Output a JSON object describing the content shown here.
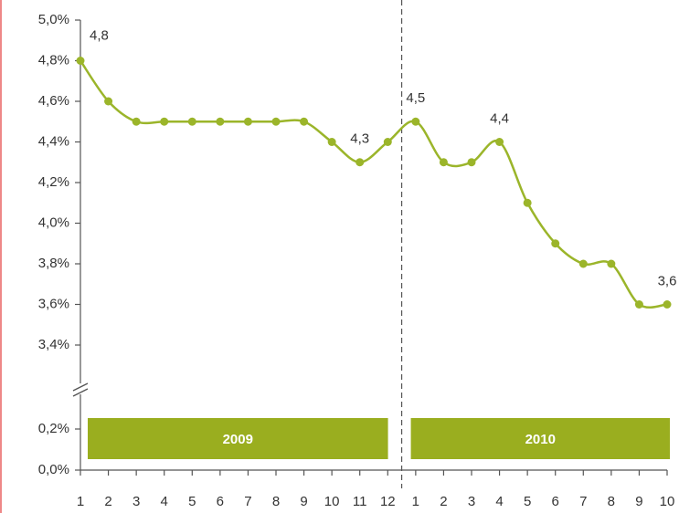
{
  "chart_data": {
    "type": "line",
    "categories": [
      "1",
      "2",
      "3",
      "4",
      "5",
      "6",
      "7",
      "8",
      "9",
      "10",
      "11",
      "12",
      "1",
      "2",
      "3",
      "4",
      "5",
      "6",
      "7",
      "8",
      "9",
      "10"
    ],
    "periods": [
      "2009",
      "2010"
    ],
    "series": [
      {
        "color": "#9bb52a",
        "values": [
          4.8,
          4.6,
          4.5,
          4.5,
          4.5,
          4.5,
          4.5,
          4.5,
          4.5,
          4.4,
          4.3,
          4.4,
          4.5,
          4.3,
          4.3,
          4.4,
          4.1,
          3.9,
          3.8,
          3.8,
          3.6,
          3.6
        ],
        "value_labels": [
          "4,8",
          null,
          null,
          null,
          null,
          null,
          null,
          null,
          null,
          null,
          "4,3",
          null,
          "4,5",
          null,
          null,
          "4,4",
          null,
          null,
          null,
          null,
          null,
          "3,6"
        ]
      }
    ],
    "period_color": "#9aae1f",
    "ylim": [
      0,
      5.0
    ],
    "ybreak": [
      0.2,
      3.4
    ],
    "yticks": [
      {
        "value": 0.0,
        "label": "0,0%"
      },
      {
        "value": 0.2,
        "label": "0,2%"
      },
      {
        "value": 3.4,
        "label": "3,4%"
      },
      {
        "value": 3.6,
        "label": "3,6%"
      },
      {
        "value": 3.8,
        "label": "3,8%"
      },
      {
        "value": 4.0,
        "label": "4,0%"
      },
      {
        "value": 4.2,
        "label": "4,2%"
      },
      {
        "value": 4.4,
        "label": "4,4%"
      },
      {
        "value": 4.6,
        "label": "4,6%"
      },
      {
        "value": 4.8,
        "label": "4,8%"
      },
      {
        "value": 5.0,
        "label": "5,0%"
      }
    ]
  }
}
